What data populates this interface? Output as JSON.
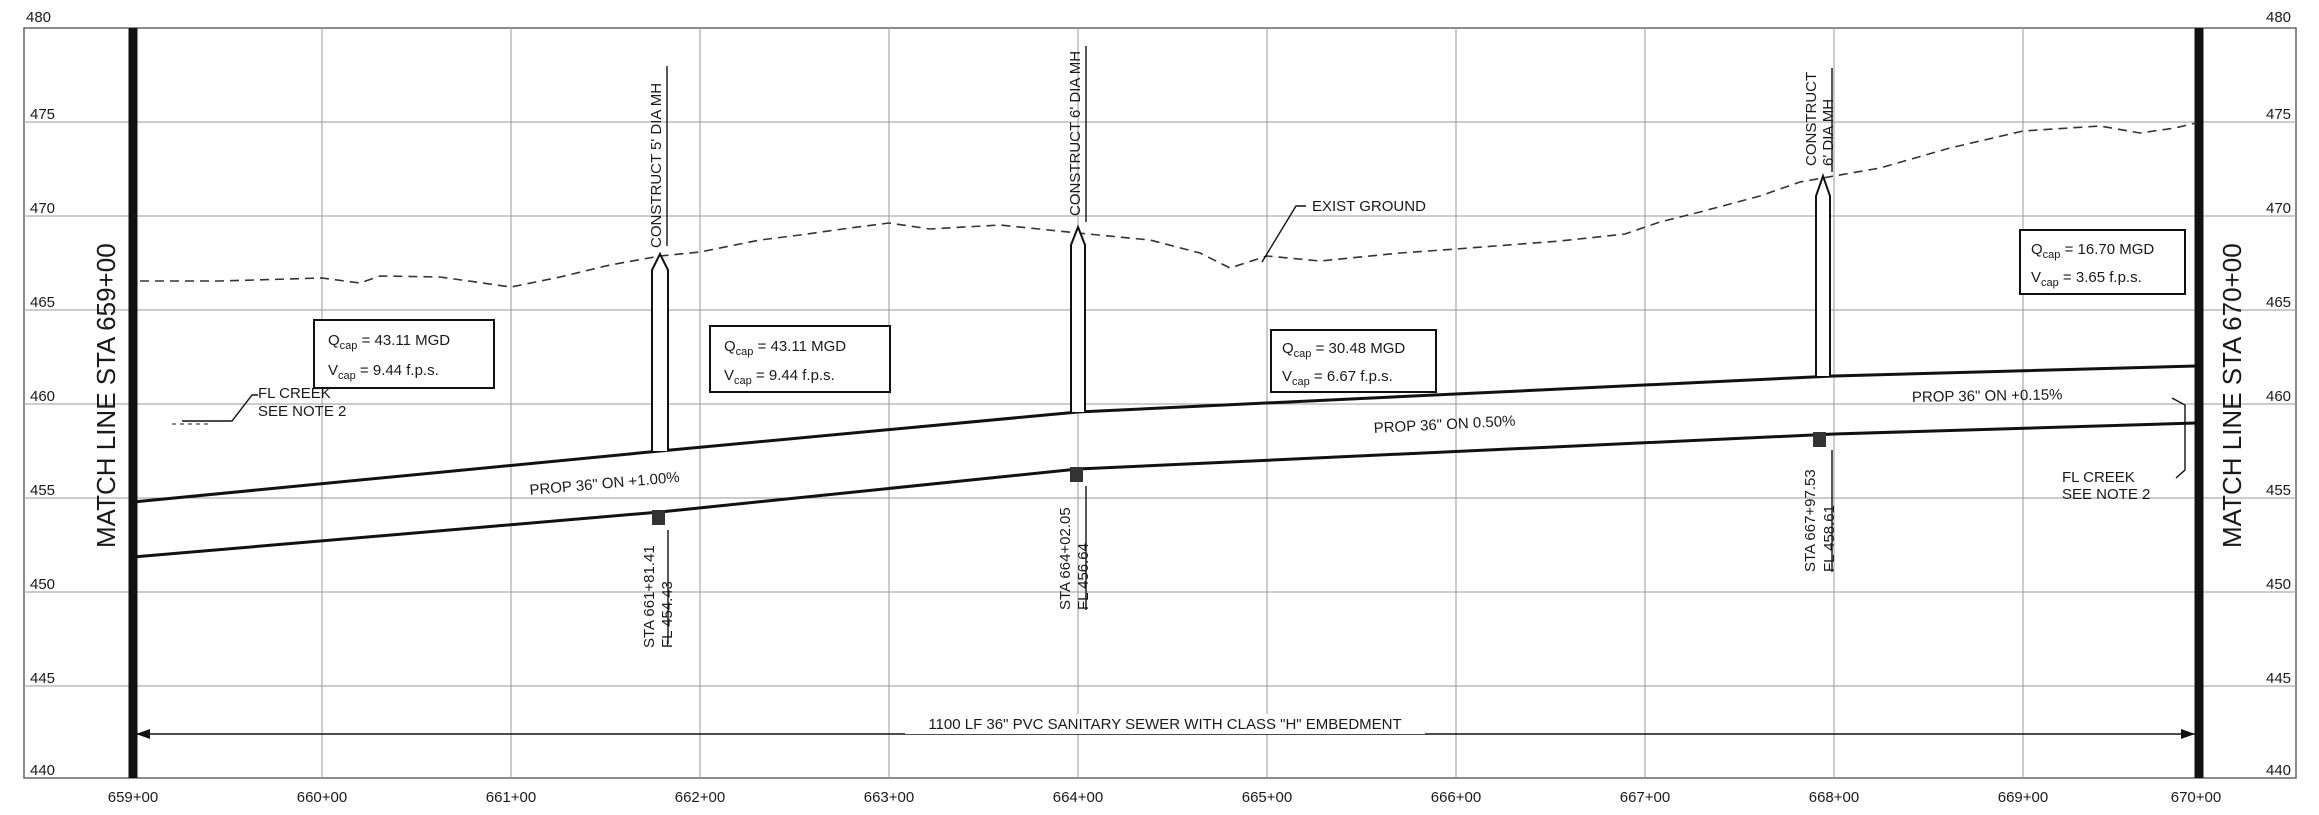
{
  "drawing": {
    "elev_axis": {
      "top": "480",
      "labels": [
        "475",
        "470",
        "465",
        "460",
        "455",
        "450",
        "445",
        "440"
      ]
    },
    "station_axis": {
      "labels": [
        "659+00",
        "660+00",
        "661+00",
        "662+00",
        "663+00",
        "664+00",
        "665+00",
        "666+00",
        "667+00",
        "668+00",
        "669+00",
        "670+00"
      ]
    },
    "match_left": "MATCH LINE STA 659+00",
    "match_right": "MATCH LINE STA 670+00",
    "exist_ground": "EXIST GROUND",
    "fl_creek_left": [
      "FL CREEK",
      "SEE NOTE 2"
    ],
    "fl_creek_right": [
      "FL CREEK",
      "SEE NOTE 2"
    ],
    "manholes": [
      {
        "label": "CONSTRUCT 5' DIA MH",
        "sta": "STA 661+81.41",
        "fl": "FL 454.43"
      },
      {
        "label": "CONSTRUCT 6' DIA MH",
        "sta": "STA 664+02.05",
        "fl": "FL 456.64"
      },
      {
        "label": [
          "CONSTRUCT",
          "6' DIA MH"
        ],
        "sta": "STA 667+97.53",
        "fl": "FL 458.61"
      }
    ],
    "capacities": [
      {
        "q": "43.11 MGD",
        "v": "9.44 f.p.s."
      },
      {
        "q": "43.11 MGD",
        "v": "9.44 f.p.s."
      },
      {
        "q": "30.48 MGD",
        "v": "6.67 f.p.s."
      },
      {
        "q": "16.70 MGD",
        "v": "3.65 f.p.s."
      }
    ],
    "cap_labels": {
      "q_main": "Q",
      "v_main": "V",
      "sub": "cap",
      "eq": " = "
    },
    "pipes": [
      {
        "label": "PROP 36\" ON +1.00%"
      },
      {
        "label": "PROP 36\" ON 0.50%"
      },
      {
        "label": "PROP 36\" ON +0.15%"
      }
    ],
    "dimension": "1100 LF 36\" PVC SANITARY SEWER WITH CLASS \"H\" EMBEDMENT"
  }
}
